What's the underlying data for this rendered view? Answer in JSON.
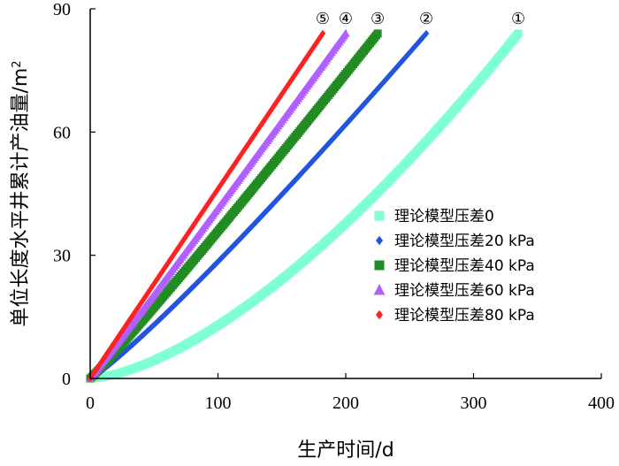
{
  "chart_data": {
    "type": "scatter",
    "title": "",
    "xlabel": "生产时间/d",
    "ylabel": "单位长度水平井累计产油量/m",
    "ylabel_superscript": "2",
    "xlim": [
      0,
      400
    ],
    "ylim": [
      0,
      90
    ],
    "x_ticks": [
      0,
      100,
      200,
      300,
      400
    ],
    "y_ticks": [
      0,
      30,
      60,
      90
    ],
    "grid": false,
    "legend_position": "center-right",
    "series": [
      {
        "name": "理论模型压差0",
        "tag": "①",
        "marker": "square",
        "color": "#7fffd4",
        "x_end": 335,
        "y_end": 84,
        "exponent": 1.55
      },
      {
        "name": "理论模型压差20 kPa",
        "tag": "②",
        "marker": "diamond",
        "color": "#2255dd",
        "x_end": 263,
        "y_end": 84,
        "exponent": 1.12
      },
      {
        "name": "理论模型压差40 kPa",
        "tag": "③",
        "marker": "square",
        "color": "#228b22",
        "x_end": 225,
        "y_end": 84,
        "exponent": 1.05
      },
      {
        "name": "理论模型压差60 kPa",
        "tag": "④",
        "marker": "triangle",
        "color": "#b060ff",
        "x_end": 200,
        "y_end": 84,
        "exponent": 1.02
      },
      {
        "name": "理论模型压差80 kPa",
        "tag": "⑤",
        "marker": "diamond",
        "color": "#ff2020",
        "x_end": 182,
        "y_end": 84,
        "exponent": 1.0
      }
    ]
  }
}
